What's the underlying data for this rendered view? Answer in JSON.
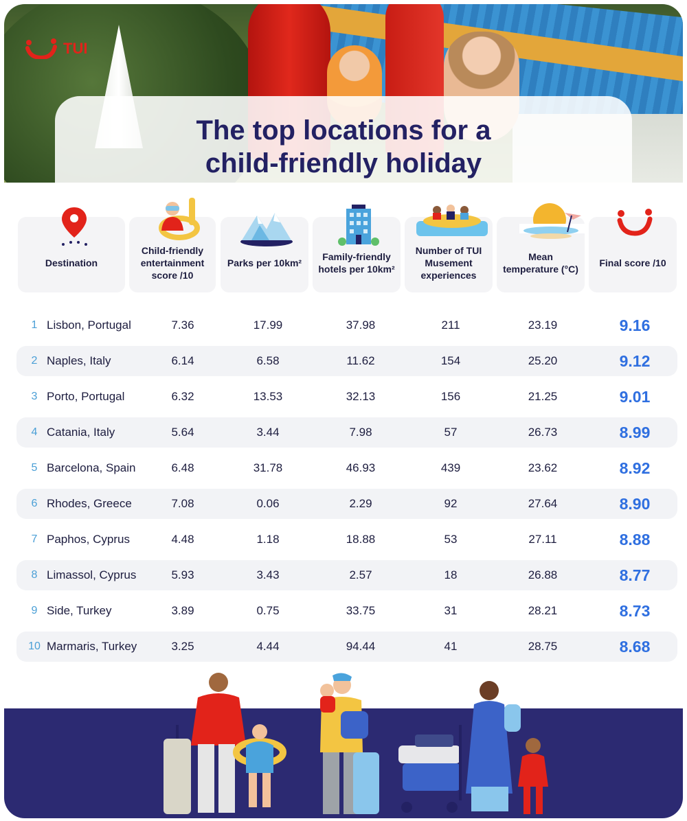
{
  "brand": {
    "logo_text": "TUI",
    "accent": "#e2231a"
  },
  "title": {
    "line1": "The top locations for a",
    "line2": "child-friendly holiday",
    "color": "#232163"
  },
  "columns": [
    {
      "key": "destination",
      "label": "Destination",
      "icon": "location-pin-icon"
    },
    {
      "key": "entertainment",
      "label": "Child-friendly entertainment score /10",
      "icon": "child-float-icon"
    },
    {
      "key": "parks",
      "label": "Parks per 10km²",
      "icon": "mountains-icon"
    },
    {
      "key": "hotels",
      "label": "Family-friendly hotels per 10km²",
      "icon": "hotel-icon"
    },
    {
      "key": "experiences",
      "label": "Number of TUI Musement experiences",
      "icon": "raft-icon"
    },
    {
      "key": "temperature",
      "label": "Mean temperature (°C)",
      "icon": "sunset-icon"
    },
    {
      "key": "score",
      "label": "Final score /10",
      "icon": "tui-smile-icon"
    }
  ],
  "rows": [
    {
      "rank": "1",
      "destination": "Lisbon, Portugal",
      "entertainment": "7.36",
      "parks": "17.99",
      "hotels": "37.98",
      "experiences": "211",
      "temperature": "23.19",
      "score": "9.16"
    },
    {
      "rank": "2",
      "destination": "Naples, Italy",
      "entertainment": "6.14",
      "parks": "6.58",
      "hotels": "11.62",
      "experiences": "154",
      "temperature": "25.20",
      "score": "9.12"
    },
    {
      "rank": "3",
      "destination": "Porto, Portugal",
      "entertainment": "6.32",
      "parks": "13.53",
      "hotels": "32.13",
      "experiences": "156",
      "temperature": "21.25",
      "score": "9.01"
    },
    {
      "rank": "4",
      "destination": "Catania, Italy",
      "entertainment": "5.64",
      "parks": "3.44",
      "hotels": "7.98",
      "experiences": "57",
      "temperature": "26.73",
      "score": "8.99"
    },
    {
      "rank": "5",
      "destination": "Barcelona, Spain",
      "entertainment": "6.48",
      "parks": "31.78",
      "hotels": "46.93",
      "experiences": "439",
      "temperature": "23.62",
      "score": "8.92"
    },
    {
      "rank": "6",
      "destination": "Rhodes, Greece",
      "entertainment": "7.08",
      "parks": "0.06",
      "hotels": "2.29",
      "experiences": "92",
      "temperature": "27.64",
      "score": "8.90"
    },
    {
      "rank": "7",
      "destination": "Paphos, Cyprus",
      "entertainment": "4.48",
      "parks": "1.18",
      "hotels": "18.88",
      "experiences": "53",
      "temperature": "27.11",
      "score": "8.88"
    },
    {
      "rank": "8",
      "destination": "Limassol, Cyprus",
      "entertainment": "5.93",
      "parks": "3.43",
      "hotels": "2.57",
      "experiences": "18",
      "temperature": "26.88",
      "score": "8.77"
    },
    {
      "rank": "9",
      "destination": "Side, Turkey",
      "entertainment": "3.89",
      "parks": "0.75",
      "hotels": "33.75",
      "experiences": "31",
      "temperature": "28.21",
      "score": "8.73"
    },
    {
      "rank": "10",
      "destination": "Marmaris, Turkey",
      "entertainment": "3.25",
      "parks": "4.44",
      "hotels": "94.44",
      "experiences": "41",
      "temperature": "28.75",
      "score": "8.68"
    }
  ],
  "colors": {
    "score": "#2f6fe0",
    "rank": "#4a9fd6",
    "row_alt": "#f2f3f6",
    "band": "#2c2a72"
  }
}
